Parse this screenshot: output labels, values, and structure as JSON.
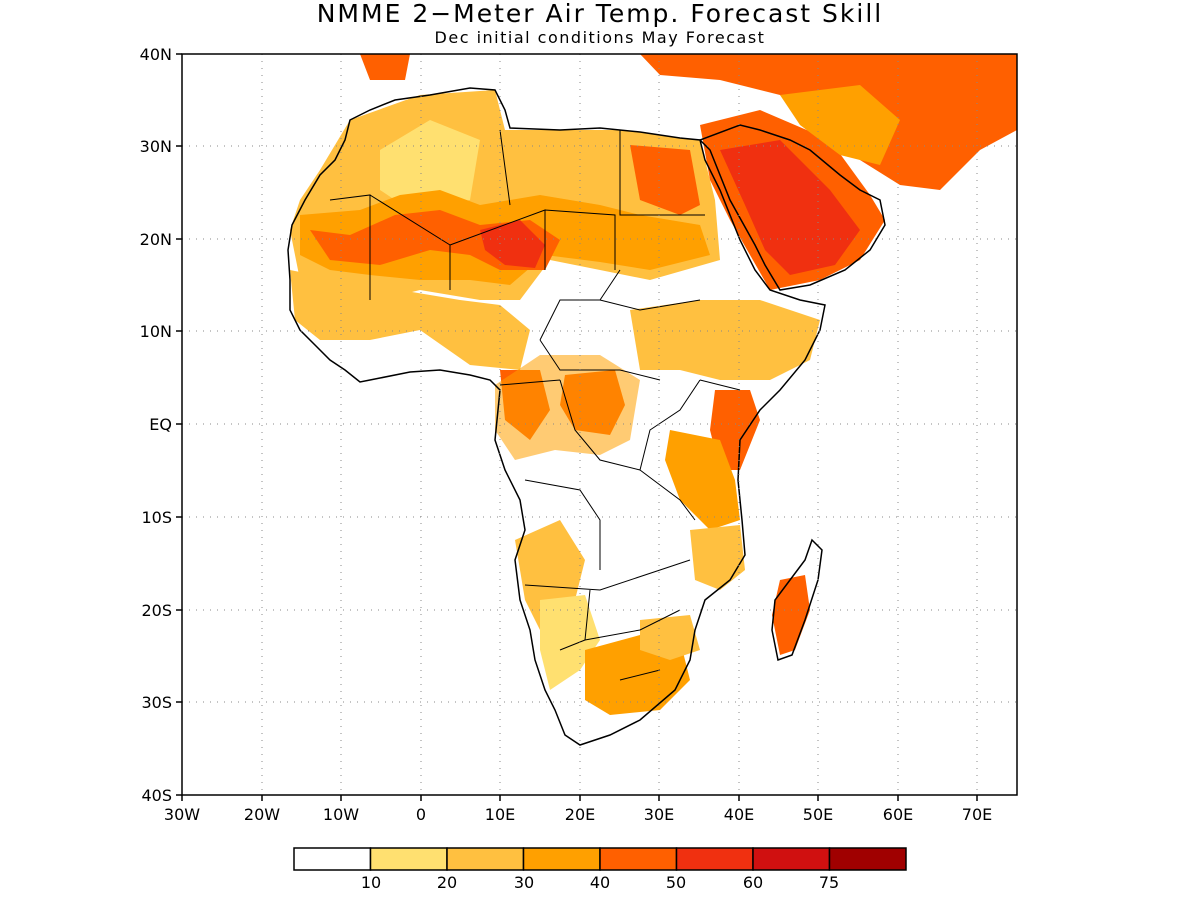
{
  "figure": {
    "title": "NMME 2−Meter Air Temp. Forecast Skill",
    "subtitle": "Dec initial conditions   May Forecast"
  },
  "axes": {
    "lat_labels": [
      "40N",
      "30N",
      "20N",
      "10N",
      "EQ",
      "10S",
      "20S",
      "30S",
      "40S"
    ],
    "lon_labels": [
      "30W",
      "20W",
      "10W",
      "0",
      "10E",
      "20E",
      "30E",
      "40E",
      "50E",
      "60E",
      "70E"
    ]
  },
  "colorbar": {
    "tick_labels": [
      "10",
      "20",
      "30",
      "40",
      "50",
      "60",
      "75"
    ],
    "colors": [
      "#ffffff",
      "#ffe070",
      "#ffc040",
      "#ffa000",
      "#ff6000",
      "#f03010",
      "#d01010",
      "#a00000"
    ]
  },
  "map": {
    "region": "Africa",
    "lon_range": [
      -30,
      75
    ],
    "lat_range": [
      -40,
      40
    ],
    "grid": "dotted",
    "colors": {
      "land_outline": "#000000",
      "ocean": "#ffffff"
    }
  }
}
